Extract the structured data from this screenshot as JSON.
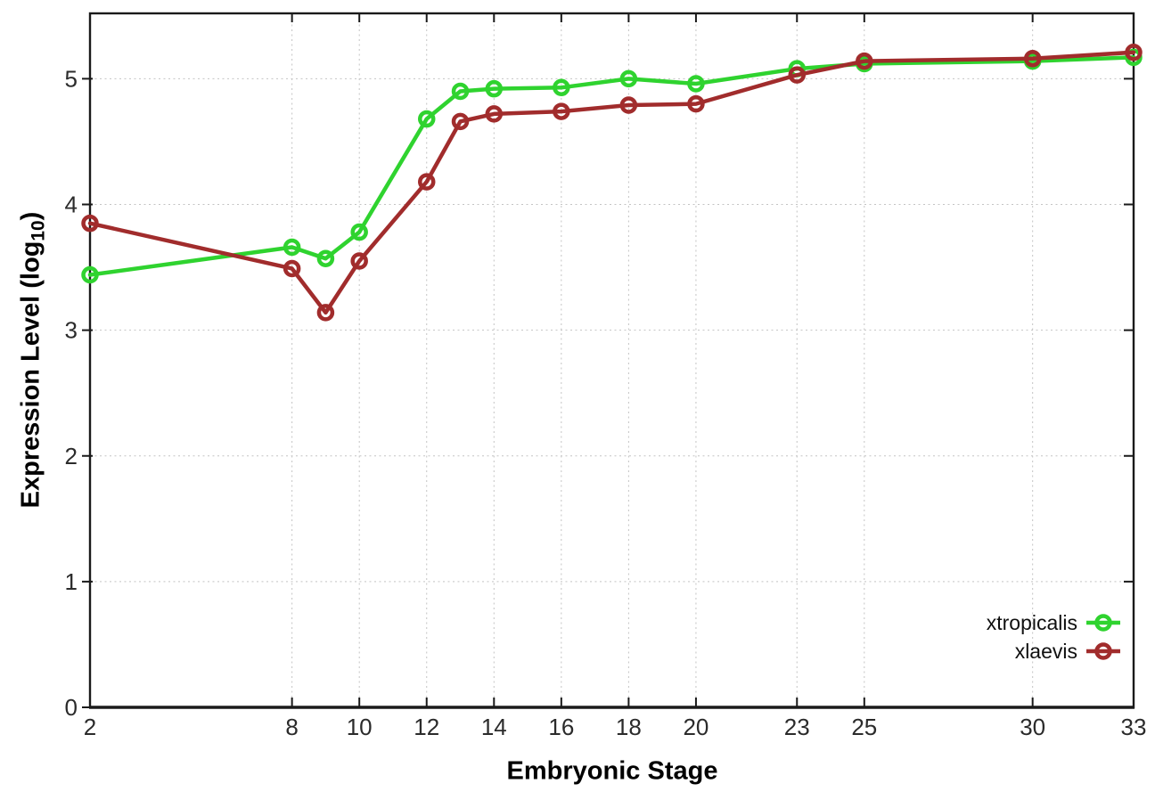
{
  "chart_data": {
    "type": "line",
    "title": "",
    "xlabel": "Embryonic Stage",
    "ylabel": "Expression Level (log10)",
    "ylabel_parts": {
      "pre": "Expression Level (log",
      "sub": "10",
      "post": ")"
    },
    "x": [
      2,
      8,
      9,
      10,
      12,
      13,
      14,
      16,
      18,
      20,
      23,
      25,
      30,
      33
    ],
    "xticks": [
      2,
      8,
      10,
      12,
      14,
      16,
      18,
      20,
      23,
      25,
      30,
      33
    ],
    "yticks": [
      0,
      1,
      2,
      3,
      4,
      5
    ],
    "xlim": [
      2,
      33
    ],
    "ylim": [
      0,
      5.52
    ],
    "grid": true,
    "legend_position": "bottom-right",
    "series": [
      {
        "name": "xtropicalis",
        "color": "#2fd32f",
        "values": [
          3.44,
          3.66,
          3.57,
          3.78,
          4.68,
          4.9,
          4.92,
          4.93,
          5.0,
          4.96,
          5.08,
          5.12,
          5.14,
          5.17
        ]
      },
      {
        "name": "xlaevis",
        "color": "#a12c2c",
        "values": [
          3.85,
          3.49,
          3.14,
          3.55,
          4.18,
          4.66,
          4.72,
          4.74,
          4.79,
          4.8,
          5.03,
          5.14,
          5.16,
          5.21
        ]
      }
    ],
    "style": {
      "grid_color": "#c4c4c4",
      "axis_color": "#1a1a1a",
      "tick_label_color": "#2b2b2b"
    }
  }
}
